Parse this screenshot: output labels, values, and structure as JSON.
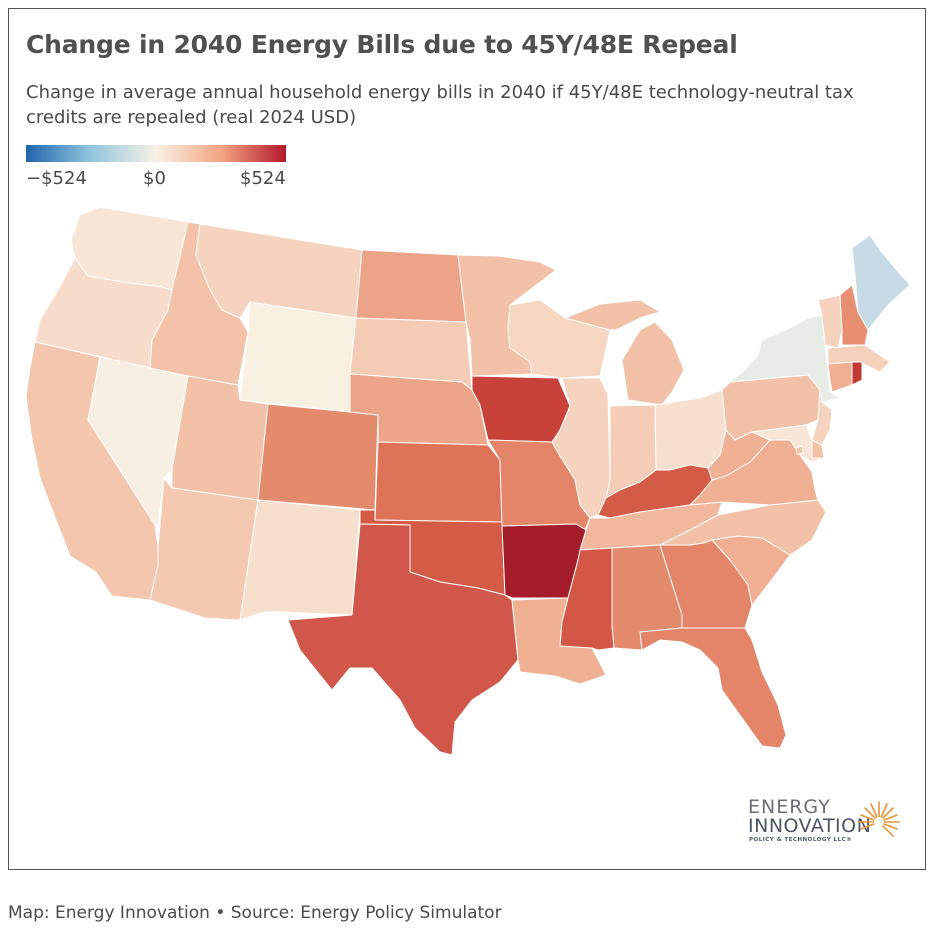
{
  "title": "Change in 2040 Energy Bills due to 45Y/48E Repeal",
  "subtitle": "Change in average annual household energy bills in 2040 if 45Y/48E technology-neutral tax credits are repealed (real 2024 USD)",
  "legend": {
    "min_label": "−$524",
    "mid_label": "$0",
    "max_label": "$524",
    "min_color": "#2166ac",
    "mid_color": "#f7f1e5",
    "max_color": "#b2182b"
  },
  "logo": {
    "line1": "ENERGY",
    "line2": "INNOVATION",
    "line3": "POLICY & TECHNOLOGY LLC®"
  },
  "footer": "Map: Energy Innovation • Source: Energy Policy Simulator",
  "state_colors": {
    "WA": "#f8e5d6",
    "OR": "#f7dccb",
    "CA": "#f5c6ae",
    "NV": "#f7efe2",
    "ID": "#f3c2a9",
    "MT": "#f6d3bf",
    "WY": "#f8f0e1",
    "UT": "#f3c1a8",
    "AZ": "#f4c8b1",
    "CO": "#e48a6d",
    "NM": "#f7dfcd",
    "ND": "#eda388",
    "SD": "#f4ccb5",
    "NE": "#eda58a",
    "KS": "#de7358",
    "OK": "#d45c47",
    "TX": "#d0574a",
    "MN": "#f3c1a8",
    "IA": "#c8423a",
    "MO": "#e4856a",
    "AR": "#a51d2a",
    "LA": "#f0b093",
    "WI": "#f6d5c1",
    "IL": "#f6d3bf",
    "MI": "#f3c1a8",
    "IN": "#f5cdb7",
    "OH": "#f8e0cf",
    "KY": "#d45c47",
    "TN": "#f2b89d",
    "MS": "#d45647",
    "AL": "#e48a6d",
    "GA": "#e4856a",
    "FL": "#e4856a",
    "SC": "#f1ae92",
    "NC": "#f3c1a8",
    "VA": "#f0b093",
    "WV": "#f0b093",
    "PA": "#f3c1a8",
    "NY": "#e8ece6",
    "ME": "#c7dbe6",
    "VT": "#f6d3bf",
    "NH": "#e88f72",
    "MA": "#f5d0bb",
    "CT": "#f1ae92",
    "RI": "#c13a33",
    "NJ": "#f6d3bf",
    "DE": "#f3c1a8",
    "MD": "#f8e5d6",
    "DC": "#f3c1a8"
  }
}
